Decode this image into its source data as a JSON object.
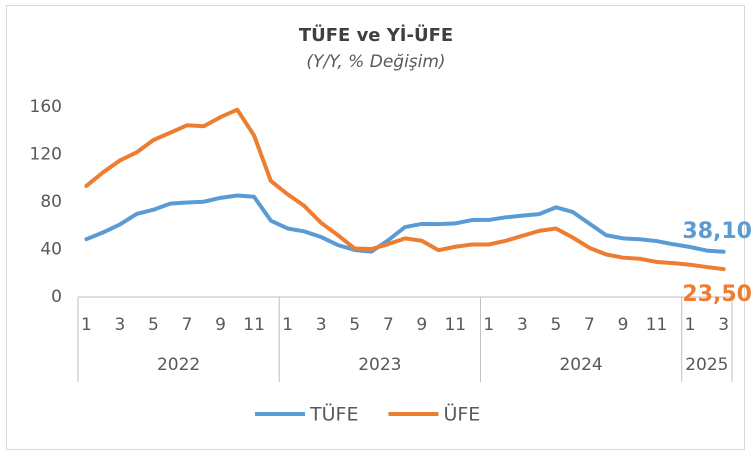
{
  "chart_data": {
    "type": "line",
    "title": "TÜFE ve Yİ-ÜFE",
    "subtitle": "(Y/Y, % Değişim)",
    "categories": [
      "1",
      null,
      "3",
      null,
      "5",
      null,
      "7",
      null,
      "9",
      null,
      "11",
      null,
      "1",
      null,
      "3",
      null,
      "5",
      null,
      "7",
      null,
      "9",
      null,
      "11",
      null,
      "1",
      null,
      "3",
      null,
      "5",
      null,
      "7",
      null,
      "9",
      null,
      "11",
      null,
      "1",
      null,
      "3"
    ],
    "year_groups": [
      {
        "label": "2022",
        "months": 12
      },
      {
        "label": "2023",
        "months": 12
      },
      {
        "label": "2024",
        "months": 12
      },
      {
        "label": "2025",
        "months": 3
      }
    ],
    "series": [
      {
        "name": "TÜFE",
        "color": "#5b9bd5",
        "values": [
          48.7,
          54.4,
          61.1,
          70.0,
          73.5,
          78.6,
          79.6,
          80.2,
          83.5,
          85.5,
          84.4,
          64.3,
          57.7,
          55.2,
          50.5,
          43.7,
          39.6,
          38.2,
          47.8,
          58.9,
          61.5,
          61.4,
          62.0,
          64.8,
          64.9,
          67.1,
          68.5,
          69.8,
          75.5,
          71.6,
          61.8,
          52.0,
          49.4,
          48.6,
          47.1,
          44.4,
          42.1,
          39.1,
          38.1
        ],
        "value_labels": [
          null,
          null,
          null,
          null,
          null,
          null,
          null,
          null,
          null,
          null,
          null,
          null,
          null,
          null,
          null,
          null,
          null,
          null,
          null,
          null,
          null,
          null,
          null,
          null,
          null,
          null,
          null,
          null,
          null,
          null,
          null,
          null,
          null,
          null,
          null,
          null,
          null,
          null,
          "38,10"
        ]
      },
      {
        "name": "ÜFE",
        "color": "#ed7d31",
        "values": [
          93.5,
          105.0,
          115.0,
          121.8,
          132.2,
          138.3,
          144.6,
          143.8,
          151.5,
          157.7,
          136.0,
          97.7,
          86.5,
          76.6,
          62.4,
          52.1,
          40.8,
          40.4,
          44.5,
          49.4,
          47.4,
          39.4,
          42.3,
          44.2,
          44.2,
          47.3,
          51.5,
          55.7,
          57.7,
          50.1,
          41.4,
          35.8,
          33.1,
          32.2,
          29.5,
          28.5,
          27.2,
          25.2,
          23.5
        ],
        "value_labels": [
          null,
          null,
          null,
          null,
          null,
          null,
          null,
          null,
          null,
          null,
          null,
          null,
          null,
          null,
          null,
          null,
          null,
          null,
          null,
          null,
          null,
          null,
          null,
          null,
          null,
          null,
          null,
          null,
          null,
          null,
          null,
          null,
          null,
          null,
          null,
          null,
          null,
          null,
          "23,50"
        ]
      }
    ],
    "ylim": [
      0,
      160
    ],
    "yticks": [
      0,
      40,
      80,
      120,
      160
    ],
    "grid": false,
    "legend": "bottom"
  }
}
